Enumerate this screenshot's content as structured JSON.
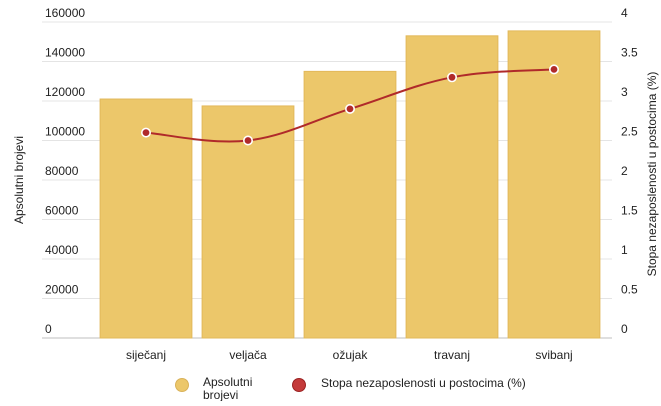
{
  "chart_data": {
    "type": "bar",
    "categories": [
      "siječanj",
      "veljača",
      "ožujak",
      "travanj",
      "svibanj"
    ],
    "series": [
      {
        "name": "Apsolutni brojevi",
        "type": "bar",
        "axis": "left",
        "color": "#ecc76a",
        "values": [
          121000,
          117500,
          135000,
          153000,
          155500
        ]
      },
      {
        "name": "Stopa nezaposlenosti u postocima (%)",
        "type": "line",
        "axis": "right",
        "color": "#b02a2a",
        "values": [
          2.6,
          2.5,
          2.9,
          3.3,
          3.4
        ]
      }
    ],
    "ylabel_left": "Apsolutni brojevi",
    "ylabel_right": "Stopa nezaposlenosti u postocima (%)",
    "ylim_left": [
      0,
      160000
    ],
    "ylim_right": [
      0,
      4
    ],
    "yticks_left": [
      "0",
      "20000",
      "40000",
      "60000",
      "80000",
      "100000",
      "120000",
      "140000",
      "160000"
    ],
    "yticks_right": [
      "0",
      "0.5",
      "1",
      "1.5",
      "2",
      "2.5",
      "3",
      "3.5",
      "4"
    ],
    "grid": true,
    "legend_position": "bottom",
    "legend": [
      {
        "label_lines": [
          "Apsolutni",
          "brojevi"
        ],
        "color": "#ecc76a",
        "marker": "bar-dot"
      },
      {
        "label_lines": [
          "Stopa nezaposlenosti u postocima (%)"
        ],
        "color": "#c43a3a",
        "marker": "line-dot"
      }
    ]
  }
}
